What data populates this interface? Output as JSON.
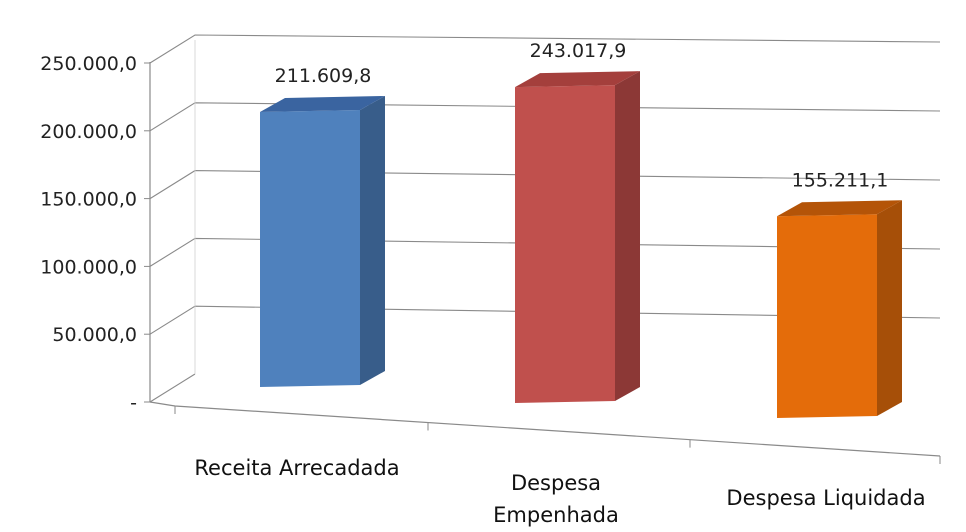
{
  "chart_data": {
    "type": "bar",
    "style": "3d-column",
    "title": "",
    "xlabel": "",
    "ylabel": "",
    "ylim": [
      0,
      250000
    ],
    "grid": true,
    "legend": "none",
    "yticks": [
      {
        "value": 0,
        "label": "-"
      },
      {
        "value": 50000,
        "label": "50.000,0"
      },
      {
        "value": 100000,
        "label": "100.000,0"
      },
      {
        "value": 150000,
        "label": "150.000,0"
      },
      {
        "value": 200000,
        "label": "200.000,0"
      },
      {
        "value": 250000,
        "label": "250.000,0"
      }
    ],
    "categories": [
      {
        "label_lines": [
          "Receita Arrecadada"
        ]
      },
      {
        "label_lines": [
          "Despesa",
          "Empenhada"
        ]
      },
      {
        "label_lines": [
          "Despesa Liquidada"
        ]
      }
    ],
    "values": [
      211609.8,
      243017.9,
      155211.1
    ],
    "value_labels": [
      "211.609,8",
      "243.017,9",
      "155.211,1"
    ],
    "colors": {
      "front": [
        "#4F81BD",
        "#C0504D",
        "#E46C0A"
      ],
      "side": [
        "#385D8A",
        "#8C3836",
        "#A64F08"
      ],
      "top": [
        "#3A64A0",
        "#A43F3C",
        "#B45408"
      ]
    }
  }
}
